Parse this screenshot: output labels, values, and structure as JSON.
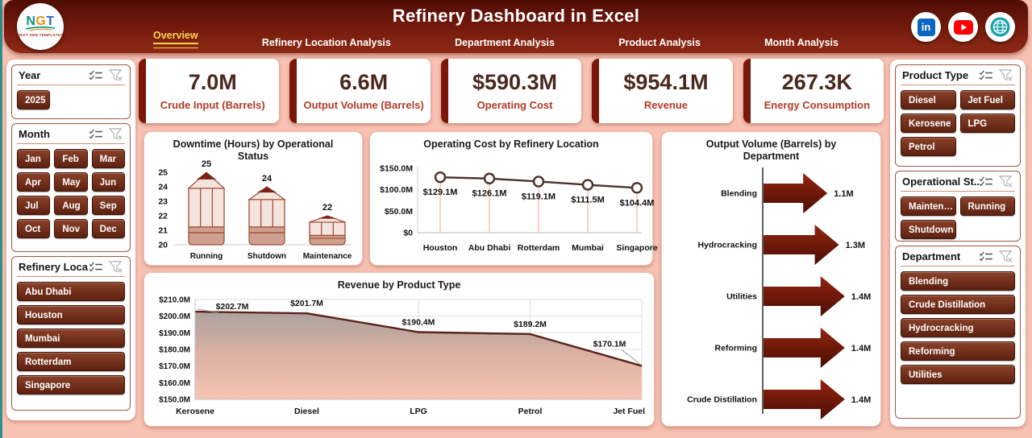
{
  "header": {
    "title": "Refinery Dashboard in Excel",
    "logo": {
      "letters": [
        "N",
        "G",
        "T"
      ],
      "subtext": "NEXT GEN TEMPLATES"
    },
    "tabs": [
      {
        "label": "Overview",
        "active": true
      },
      {
        "label": "Refinery Location Analysis",
        "active": false
      },
      {
        "label": "Department Analysis",
        "active": false
      },
      {
        "label": "Product Analysis",
        "active": false
      },
      {
        "label": "Month Analysis",
        "active": false
      }
    ],
    "social": [
      "linkedin",
      "youtube",
      "website"
    ],
    "linkedin_glyph": "in"
  },
  "kpis": [
    {
      "value": "7.0M",
      "label": "Crude Input (Barrels)"
    },
    {
      "value": "6.6M",
      "label": "Output Volume (Barrels)"
    },
    {
      "value": "$590.3M",
      "label": "Operating Cost"
    },
    {
      "value": "$954.1M",
      "label": "Revenue"
    },
    {
      "value": "267.3K",
      "label": "Energy Consumption"
    }
  ],
  "slicers": {
    "year": {
      "title": "Year",
      "items": [
        "2025"
      ]
    },
    "month": {
      "title": "Month",
      "items": [
        "Jan",
        "Feb",
        "Mar",
        "Apr",
        "May",
        "Jun",
        "Jul",
        "Aug",
        "Sep",
        "Oct",
        "Nov",
        "Dec"
      ]
    },
    "refinery_location": {
      "title": "Refinery Loca...",
      "items": [
        "Abu Dhabi",
        "Houston",
        "Mumbai",
        "Rotterdam",
        "Singapore"
      ]
    },
    "product_type": {
      "title": "Product Type",
      "items": [
        "Diesel",
        "Jet Fuel",
        "Kerosene",
        "LPG",
        "Petrol"
      ]
    },
    "operational_status": {
      "title": "Operational St...",
      "items": [
        "Maintena...",
        "Running",
        "Shutdown"
      ]
    },
    "department": {
      "title": "Department",
      "items": [
        "Blending",
        "Crude Distillation",
        "Hydrocracking",
        "Reforming",
        "Utilities"
      ]
    }
  },
  "chart_data": [
    {
      "id": "downtime",
      "type": "bar",
      "bar_style": "pencil",
      "title": "Downtime (Hours) by Operational Status",
      "categories": [
        "Running",
        "Shutdown",
        "Maintenance"
      ],
      "values": [
        25,
        24,
        22
      ],
      "data_labels": [
        "25",
        "24",
        "22"
      ],
      "ylim": [
        20,
        25
      ],
      "yticks": [
        20,
        21,
        22,
        23,
        24,
        25
      ],
      "grid": false,
      "legend": "none"
    },
    {
      "id": "opcost",
      "type": "line",
      "title": "Operating Cost by Refinery Location",
      "categories": [
        "Houston",
        "Abu Dhabi",
        "Rotterdam",
        "Mumbai",
        "Singapore"
      ],
      "values": [
        129.1,
        126.1,
        119.1,
        111.5,
        104.4
      ],
      "data_labels": [
        "$129.1M",
        "$126.1M",
        "$119.1M",
        "$111.5M",
        "$104.4M"
      ],
      "ylim": [
        0,
        150
      ],
      "yticks": [
        0,
        50,
        100,
        150
      ],
      "ytick_labels": [
        "$0",
        "$50.0M",
        "$100.0M",
        "$150.0M"
      ],
      "grid": false,
      "legend": "none"
    },
    {
      "id": "revenue",
      "type": "area",
      "title": "Revenue by Product Type",
      "categories": [
        "Kerosene",
        "Diesel",
        "LPG",
        "Petrol",
        "Jet Fuel"
      ],
      "values": [
        202.7,
        201.7,
        190.4,
        189.2,
        170.1
      ],
      "data_labels": [
        "$202.7M",
        "$201.7M",
        "$190.4M",
        "$189.2M",
        "$170.1M"
      ],
      "ylim": [
        150,
        210
      ],
      "yticks": [
        150,
        160,
        170,
        180,
        190,
        200,
        210
      ],
      "ytick_labels": [
        "$150.0M",
        "$160.0M",
        "$170.0M",
        "$180.0M",
        "$190.0M",
        "$200.0M",
        "$210.0M"
      ],
      "grid": true,
      "legend": "none"
    },
    {
      "id": "output",
      "type": "bar-horizontal",
      "bar_style": "arrow",
      "title": "Output Volume (Barrels) by Department",
      "categories": [
        "Blending",
        "Hydrocracking",
        "Utilities",
        "Reforming",
        "Crude Distillation"
      ],
      "values": [
        1.1,
        1.3,
        1.4,
        1.4,
        1.4
      ],
      "data_labels": [
        "1.1M",
        "1.3M",
        "1.4M",
        "1.4M",
        "1.4M"
      ],
      "xlim": [
        0,
        1.4
      ],
      "grid": false,
      "legend": "none"
    }
  ],
  "colors": {
    "pink_bg": "#f8c2b2",
    "teal_edge": "#2f8e8e",
    "header_top": "#4f0e06",
    "header_bottom": "#8f2a16",
    "maroon": "#7a1708",
    "yellow": "#ffd34d",
    "value_brown": "#4a281e",
    "label_red": "#b23a28",
    "btn_top": "#8a4129",
    "btn_bottom": "#5d2110",
    "panel_border": "#a05644",
    "pencil_fill": "#f5e4de",
    "pencil_band": "#cfa08e",
    "pencil_stroke": "#9d4a34",
    "pencil_tip": "#7a2113",
    "line_stroke": "#4a322a",
    "drop_line": "#f2c3b5",
    "area_line": "#5a241a",
    "area_top": "#9c8d89",
    "area_mid": "#d9b0a3",
    "area_bottom": "#f7c3b3",
    "arrow_top": "#93240f",
    "arrow_bottom": "#4a0e05",
    "linkedin_blue": "#0a66c2",
    "youtube_red": "#ff0000",
    "globe_teal": "#19a0a8"
  }
}
